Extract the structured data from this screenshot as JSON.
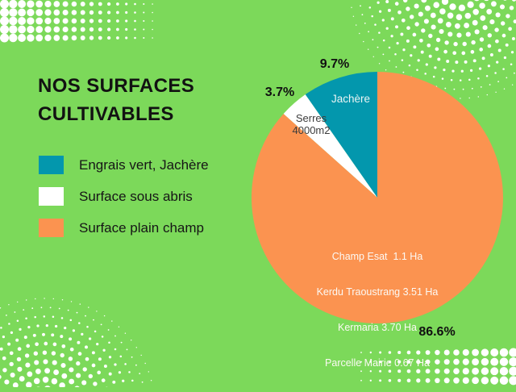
{
  "page": {
    "background_color": "#7CD95A",
    "accent_white": "#FFFFFF"
  },
  "title": {
    "line1": "NOS SURFACES",
    "line2": "CULTIVABLES"
  },
  "legend": {
    "items": [
      {
        "label": "Engrais vert, Jachère",
        "color": "#0397AD"
      },
      {
        "label": "Surface sous abris",
        "color": "#FFFFFF"
      },
      {
        "label": "Surface plain champ",
        "color": "#FB9350"
      }
    ]
  },
  "chart_data": {
    "type": "pie",
    "title": "NOS SURFACES CULTIVABLES",
    "direction": "counterclockwise",
    "start_angle_deg": 0,
    "legend_position": "left",
    "slices": [
      {
        "label": "Engrais vert, Jachère",
        "value": 9.7,
        "pct_label": "9.7%",
        "color": "#0397AD",
        "inner_label": "Jachère"
      },
      {
        "label": "Surface sous abris",
        "value": 3.7,
        "pct_label": "3.7%",
        "color": "#FFFFFF",
        "inner_label_lines": [
          "Serres",
          "4000m2"
        ]
      },
      {
        "label": "Surface plain champ",
        "value": 86.6,
        "pct_label": "86.6%",
        "color": "#FB9350",
        "inner_label_lines": [
          "Champ Esat  1.1 Ha",
          "Kerdu Traoustrang 3.51 Ha",
          "Kermaria 3.70 Ha",
          "Parcelle Mairie 0.67 Ha"
        ]
      }
    ]
  }
}
